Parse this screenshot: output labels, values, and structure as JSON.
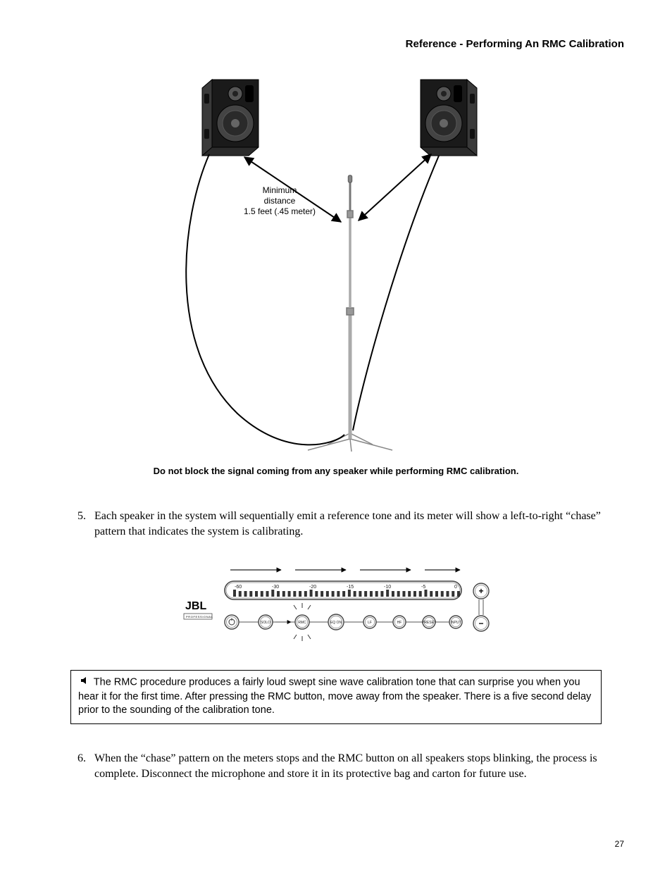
{
  "header": "Reference - Performing An RMC Calibration",
  "diagram": {
    "label_line1": "Minimum",
    "label_line2": "distance",
    "label_line3": "1.5 feet (.45 meter)",
    "caption": "Do not block the signal coming from any speaker while performing RMC calibration."
  },
  "step5": {
    "num": "5.",
    "text": "Each speaker in the system will sequentially emit a reference tone and its meter will show a left-to-right “chase” pattern that indicates the system is calibrating."
  },
  "meter": {
    "brand": "JBL",
    "brand_sub": "PROFESSIONAL",
    "scale": [
      "-60",
      "-30",
      "-20",
      "-15",
      "-10",
      "-5",
      "0"
    ],
    "buttons": [
      "SOLO",
      "RMC",
      "EQ ON",
      "LF",
      "HF",
      "PRESET",
      "INPUT"
    ],
    "plus": "+",
    "minus": "−"
  },
  "note": {
    "text": "The RMC procedure produces a fairly loud swept sine wave calibration tone that can surprise you when you hear it for the first time.  After pressing the RMC button, move away from the speaker.  There is a five second delay prior to the sounding of the calibration tone."
  },
  "step6": {
    "num": "6.",
    "text": "When the “chase” pattern on the meters stops and the RMC button on all speakers stops blinking, the process is complete.  Disconnect the microphone and store it in its protective bag and carton for future use."
  },
  "page": "27"
}
